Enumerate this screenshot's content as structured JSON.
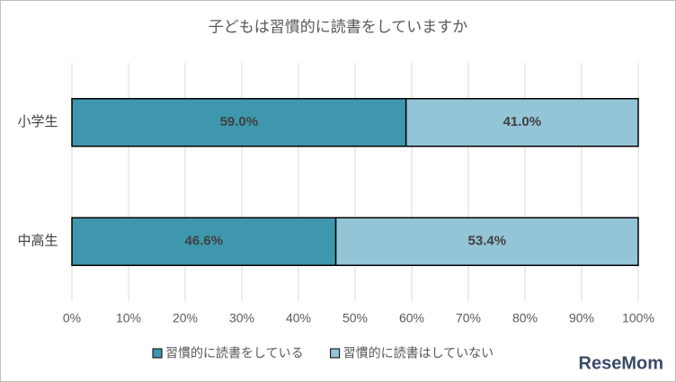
{
  "chart_data": {
    "type": "stacked-bar-horizontal",
    "title": "子どもは習慣的に読書をしていますか",
    "categories": [
      "小学生",
      "中高生"
    ],
    "series": [
      {
        "name": "習慣的に読書をしている",
        "color": "#3f97ae",
        "values": [
          59.0,
          46.6
        ],
        "value_labels": [
          "59.0%",
          "46.6%"
        ]
      },
      {
        "name": "習慣的に読書はしていない",
        "color": "#93c5d6",
        "values": [
          41.0,
          53.4
        ],
        "value_labels": [
          "41.0%",
          "53.4%"
        ]
      }
    ],
    "xlim": [
      0,
      100
    ],
    "xticks": [
      {
        "value": 0,
        "label": "0%"
      },
      {
        "value": 10,
        "label": "10%"
      },
      {
        "value": 20,
        "label": "20%"
      },
      {
        "value": 30,
        "label": "30%"
      },
      {
        "value": 40,
        "label": "40%"
      },
      {
        "value": 50,
        "label": "50%"
      },
      {
        "value": 60,
        "label": "60%"
      },
      {
        "value": 70,
        "label": "70%"
      },
      {
        "value": 80,
        "label": "80%"
      },
      {
        "value": 90,
        "label": "90%"
      },
      {
        "value": 100,
        "label": "100%"
      }
    ],
    "grid": true,
    "legend": "bottom",
    "watermark": "ReseMom"
  }
}
